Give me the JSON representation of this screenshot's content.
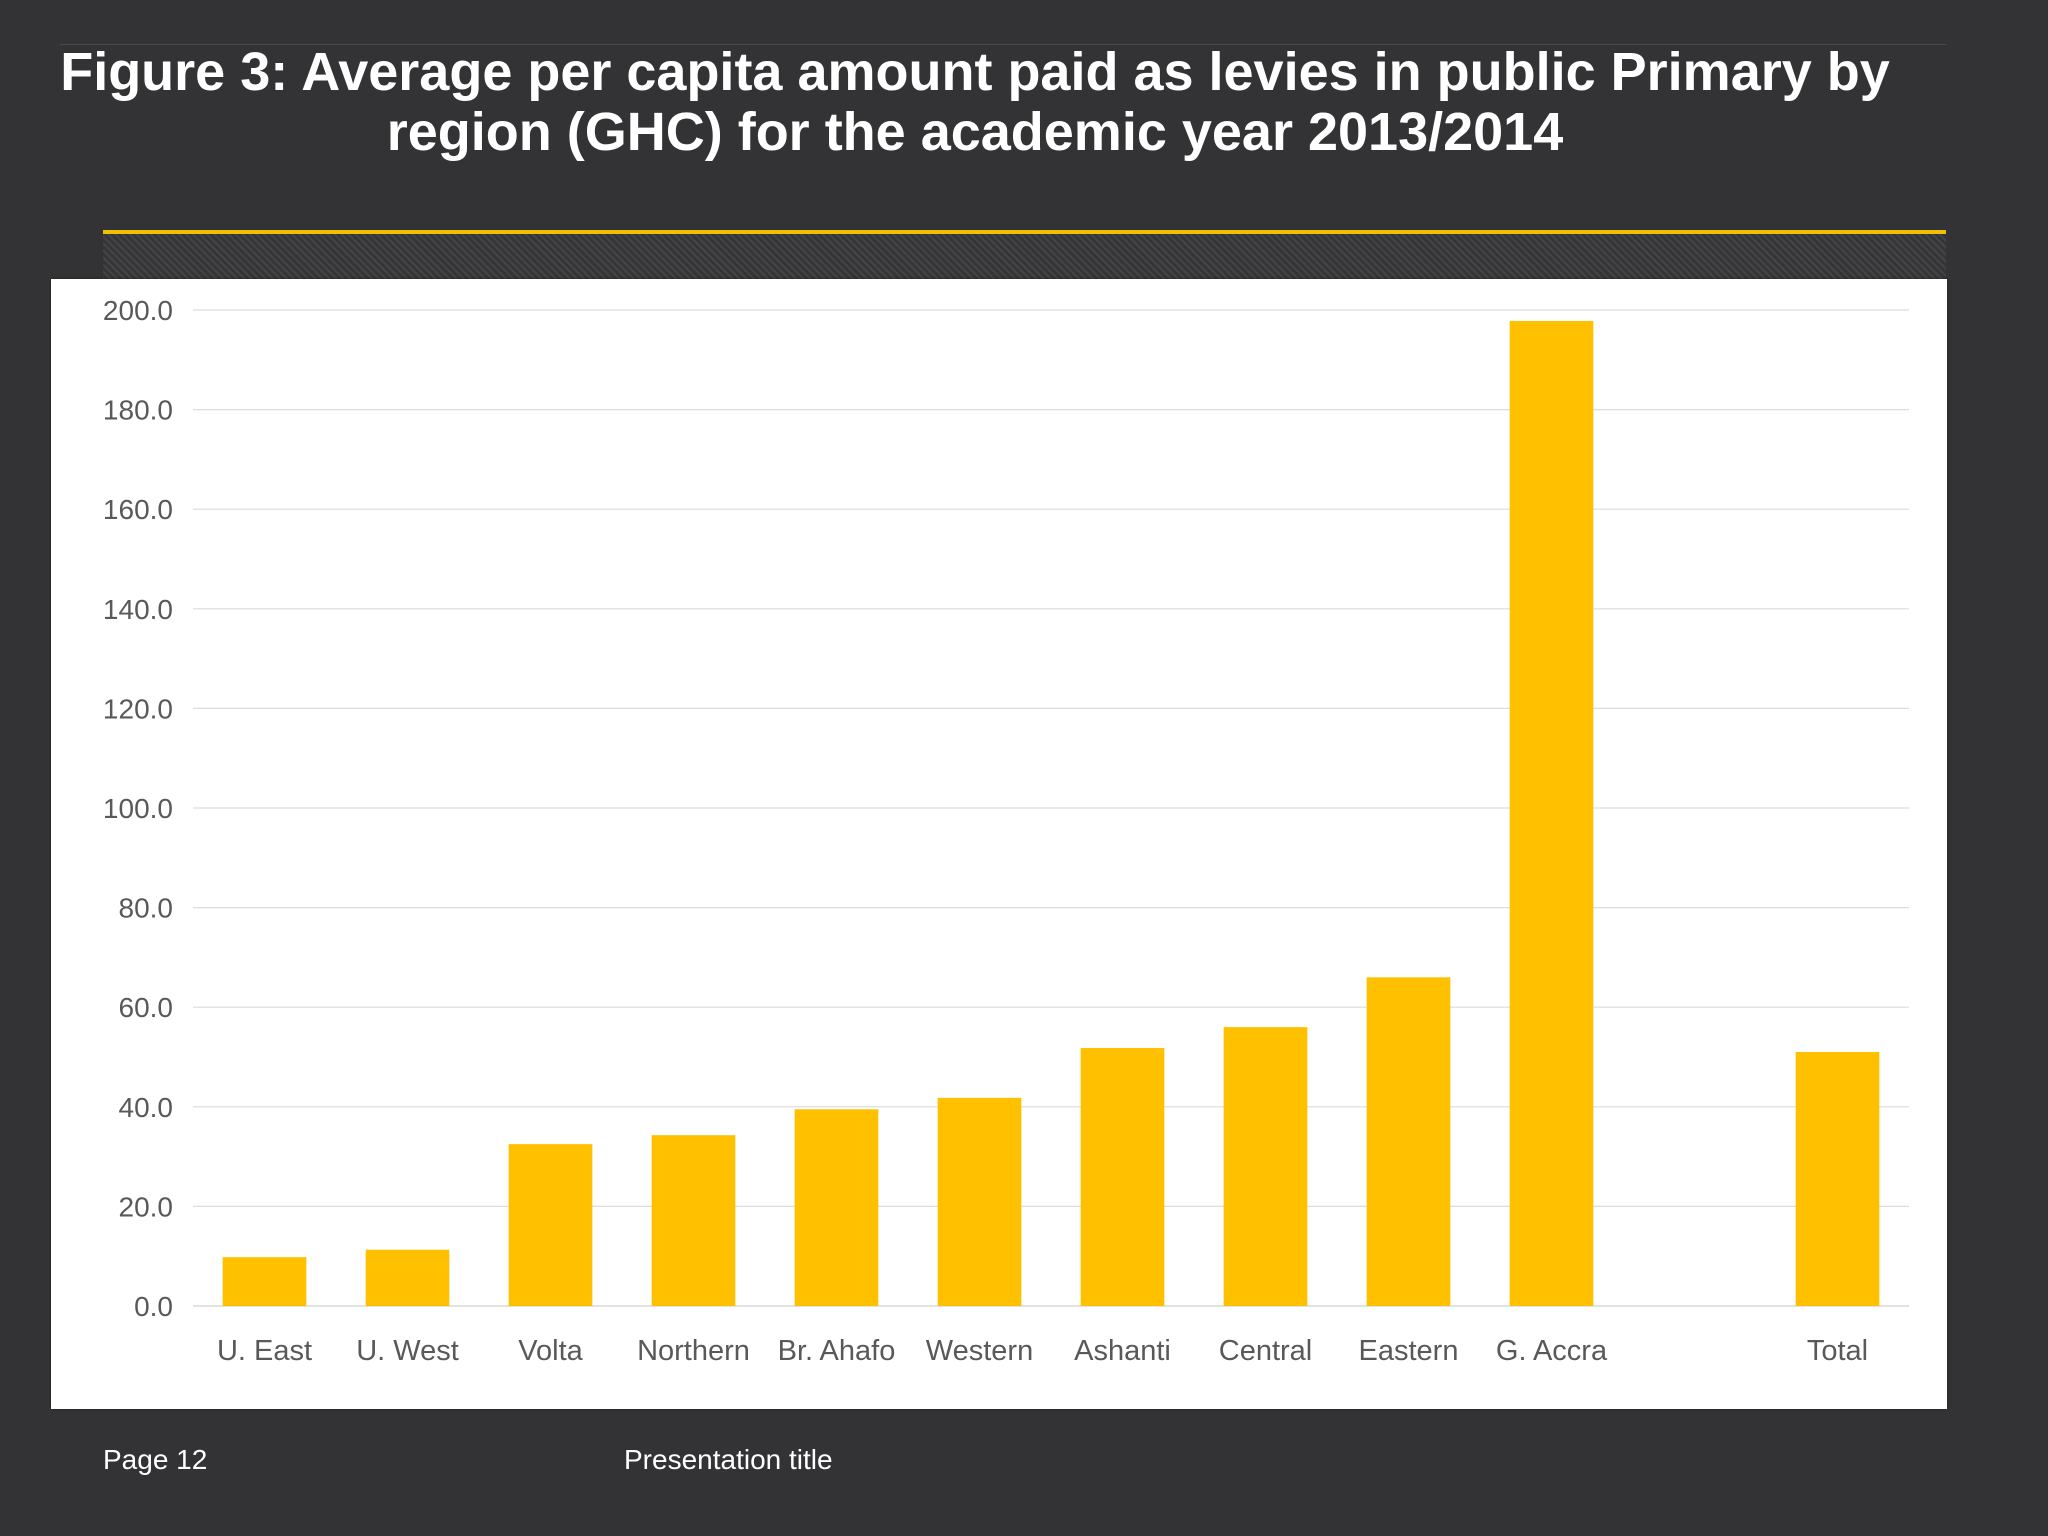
{
  "slide": {
    "title": "Figure 3: Average per capita amount paid as levies in public Primary by region (GHC) for the academic year 2013/2014",
    "page_label": "Page 12",
    "presentation_title": "Presentation title",
    "colors": {
      "background": "#333335",
      "accent": "#f0c000",
      "bar": "#ffc000"
    }
  },
  "chart_data": {
    "type": "bar",
    "title": "",
    "xlabel": "",
    "ylabel": "",
    "ylim": [
      0,
      200
    ],
    "yticks": [
      "0.0",
      "20.0",
      "40.0",
      "60.0",
      "80.0",
      "100.0",
      "120.0",
      "140.0",
      "160.0",
      "180.0",
      "200.0"
    ],
    "categories": [
      "U. East",
      "U. West",
      "Volta",
      "Northern",
      "Br. Ahafo",
      "Western",
      "Ashanti",
      "Central",
      "Eastern",
      "G. Accra",
      "",
      "Total"
    ],
    "values": [
      9.8,
      11.3,
      32.5,
      34.3,
      39.5,
      41.8,
      51.8,
      56.0,
      66.0,
      197.8,
      null,
      51.0
    ],
    "grid": true,
    "legend": "none",
    "bar_color": "#ffc000"
  }
}
